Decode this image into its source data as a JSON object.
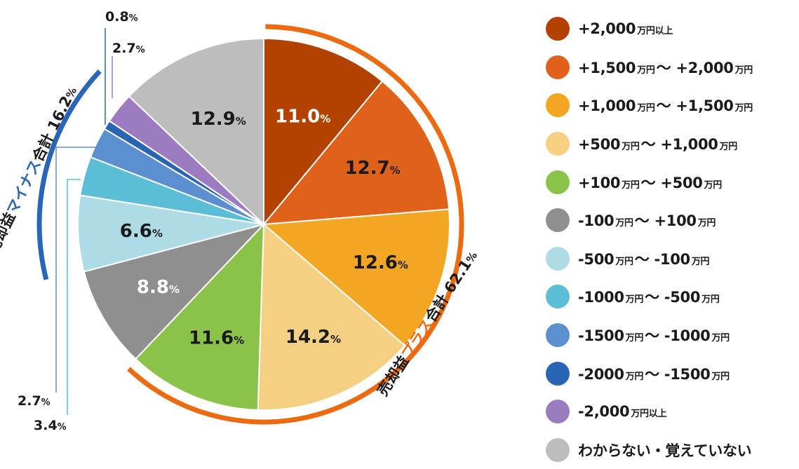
{
  "chart_data": {
    "type": "pie",
    "start_angle_deg": 0,
    "direction": "clockwise",
    "slices": [
      {
        "label": "+2,000万円以上",
        "value": 11.0,
        "display": "11.0",
        "color": "#b34100",
        "label_color": "#ffffff"
      },
      {
        "label": "+1,500万円〜+2,000万円",
        "value": 12.7,
        "display": "12.7",
        "color": "#e0621a",
        "label_color": "#1a1a1a"
      },
      {
        "label": "+1,000万円〜+1,500万円",
        "value": 12.6,
        "display": "12.6",
        "color": "#f3a622",
        "label_color": "#1a1a1a"
      },
      {
        "label": "+500万円〜+1,000万円",
        "value": 14.2,
        "display": "14.2",
        "color": "#f5d083",
        "label_color": "#1a1a1a"
      },
      {
        "label": "+100万円〜+500万円",
        "value": 11.6,
        "display": "11.6",
        "color": "#8bc34a",
        "label_color": "#1a1a1a"
      },
      {
        "label": "-100万円〜+100万円",
        "value": 8.8,
        "display": "8.8",
        "color": "#8f8f8f",
        "label_color": "#ffffff"
      },
      {
        "label": "-500万円〜-100万円",
        "value": 6.6,
        "display": "6.6",
        "color": "#aedce6",
        "label_color": "#1a1a1a"
      },
      {
        "label": "-1000万円〜-500万円",
        "value": 3.4,
        "display": "3.4",
        "color": "#5bbdd6",
        "label_color": "#1a1a1a"
      },
      {
        "label": "-1500万円〜-1000万円",
        "value": 2.7,
        "display": "2.7",
        "color": "#5b8fd0",
        "label_color": "#1a1a1a"
      },
      {
        "label": "-2000万円〜-1500万円",
        "value": 0.8,
        "display": "0.8",
        "color": "#2a64b5",
        "label_color": "#1a1a1a"
      },
      {
        "label": "-2,000万円以上",
        "value": 2.7,
        "display": "2.7",
        "color": "#9b7cc0",
        "label_color": "#1a1a1a"
      },
      {
        "label": "わからない・覚えていない",
        "value": 12.9,
        "display": "12.9",
        "color": "#bdbdbd",
        "label_color": "#1a1a1a"
      }
    ],
    "percent_suffix": "%",
    "group_plus": {
      "prefix": "売却益",
      "highlight": "プラス",
      "suffix": "合計",
      "value": "62.1",
      "color": "#ec6a10"
    },
    "group_minus": {
      "prefix": "売却益",
      "highlight": "マイナス",
      "suffix": "合計",
      "value": "16.2",
      "color": "#2a66b8"
    }
  },
  "legend": [
    {
      "parts": [
        {
          "t": "+2,000"
        },
        {
          "t": "万円以上",
          "u": true
        }
      ],
      "color": "#b34100"
    },
    {
      "parts": [
        {
          "t": "+1,500"
        },
        {
          "t": "万円",
          "u": true
        },
        {
          "t": "〜 +2,000"
        },
        {
          "t": "万円",
          "u": true
        }
      ],
      "color": "#e0621a"
    },
    {
      "parts": [
        {
          "t": "+1,000"
        },
        {
          "t": "万円",
          "u": true
        },
        {
          "t": "〜 +1,500"
        },
        {
          "t": "万円",
          "u": true
        }
      ],
      "color": "#f3a622"
    },
    {
      "parts": [
        {
          "t": "+500"
        },
        {
          "t": "万円",
          "u": true
        },
        {
          "t": "〜 +1,000"
        },
        {
          "t": "万円",
          "u": true
        }
      ],
      "color": "#f5d083"
    },
    {
      "parts": [
        {
          "t": "+100"
        },
        {
          "t": "万円",
          "u": true
        },
        {
          "t": "〜 +500"
        },
        {
          "t": "万円",
          "u": true
        }
      ],
      "color": "#8bc34a"
    },
    {
      "parts": [
        {
          "t": "-100"
        },
        {
          "t": "万円",
          "u": true
        },
        {
          "t": "〜 +100"
        },
        {
          "t": "万円",
          "u": true
        }
      ],
      "color": "#8f8f8f"
    },
    {
      "parts": [
        {
          "t": "-500"
        },
        {
          "t": "万円",
          "u": true
        },
        {
          "t": "〜 -100"
        },
        {
          "t": "万円",
          "u": true
        }
      ],
      "color": "#aedce6"
    },
    {
      "parts": [
        {
          "t": "-1000"
        },
        {
          "t": "万円",
          "u": true
        },
        {
          "t": "〜 -500"
        },
        {
          "t": "万円",
          "u": true
        }
      ],
      "color": "#5bbdd6"
    },
    {
      "parts": [
        {
          "t": "-1500"
        },
        {
          "t": "万円",
          "u": true
        },
        {
          "t": "〜 -1000"
        },
        {
          "t": "万円",
          "u": true
        }
      ],
      "color": "#5b8fd0"
    },
    {
      "parts": [
        {
          "t": "-2000"
        },
        {
          "t": "万円",
          "u": true
        },
        {
          "t": "〜 -1500"
        },
        {
          "t": "万円",
          "u": true
        }
      ],
      "color": "#2a64b5"
    },
    {
      "parts": [
        {
          "t": "-2,000"
        },
        {
          "t": "万円以上",
          "u": true
        }
      ],
      "color": "#9b7cc0"
    },
    {
      "parts": [
        {
          "t": "わからない・覚えていない"
        }
      ],
      "color": "#bdbdbd"
    }
  ]
}
